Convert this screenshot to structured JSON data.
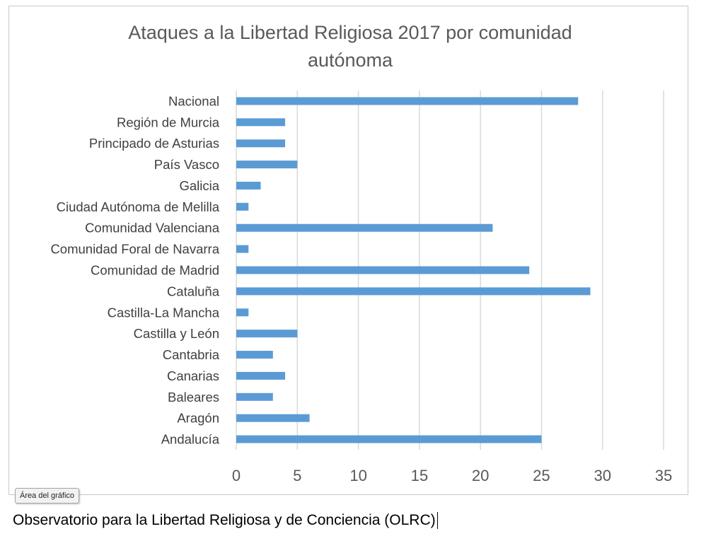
{
  "chart_data": {
    "type": "bar",
    "orientation": "horizontal",
    "title": "Ataques a la Libertad Religiosa 2017 por comunidad autónoma",
    "title_lines": [
      "Ataques a la Libertad Religiosa 2017 por comunidad",
      "autónoma"
    ],
    "categories": [
      "Andalucía",
      "Aragón",
      "Baleares",
      "Canarias",
      "Cantabria",
      "Castilla y León",
      "Castilla-La Mancha",
      "Cataluña",
      "Comunidad de Madrid",
      "Comunidad Foral de Navarra",
      "Comunidad Valenciana",
      "Ciudad Autónoma de Melilla",
      "Galicia",
      "País Vasco",
      "Principado de Asturias",
      "Región de Murcia",
      "Nacional"
    ],
    "values": [
      25,
      6,
      3,
      4,
      3,
      5,
      1,
      29,
      24,
      1,
      21,
      1,
      2,
      5,
      4,
      4,
      28
    ],
    "xlim": [
      0,
      35
    ],
    "xticks": [
      0,
      5,
      10,
      15,
      20,
      25,
      30,
      35
    ],
    "grid": true,
    "legend": false,
    "bar_color": "#5b9bd5"
  },
  "tooltip": {
    "label": "Área del gráfico"
  },
  "caption": {
    "text": "Observatorio para la Libertad Religiosa y de Conciencia (OLRC)"
  }
}
